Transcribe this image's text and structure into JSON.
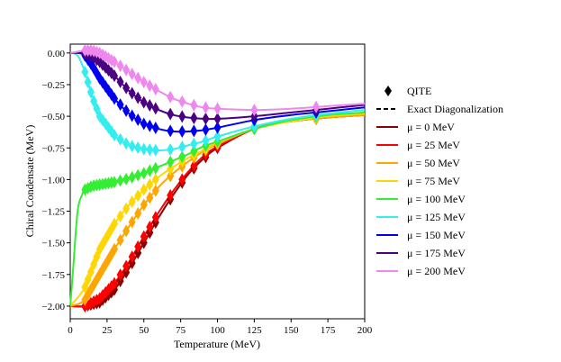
{
  "chart_data": {
    "type": "line",
    "title": "",
    "xlabel": "Temperature (MeV)",
    "ylabel": "Chiral Condensate (MeV)",
    "xlim": [
      0,
      200
    ],
    "ylim": [
      -2.1,
      0.07
    ],
    "xticks": [
      0,
      25,
      50,
      75,
      100,
      125,
      150,
      175,
      200
    ],
    "yticks": [
      0.0,
      -0.25,
      -0.5,
      -0.75,
      -1.0,
      -1.25,
      -1.5,
      -1.75,
      -2.0
    ],
    "xtick_labels": [
      "0",
      "25",
      "50",
      "75",
      "100",
      "125",
      "150",
      "175",
      "200"
    ],
    "ytick_labels": [
      "0.00",
      "−0.25",
      "−0.50",
      "−0.75",
      "−1.00",
      "−1.25",
      "−1.50",
      "−1.75",
      "−2.00"
    ],
    "grid": false,
    "legend_position": "right-outside",
    "legend": {
      "qite_label": "QITE",
      "exact_label": "Exact Diagonalization"
    },
    "series": [
      {
        "name": "μ = 0 MeV",
        "color": "#8b0000",
        "x": [
          0,
          10,
          20,
          30,
          40,
          50,
          60,
          70,
          80,
          90,
          100,
          125,
          150,
          175,
          200
        ],
        "y": [
          -2.0,
          -2.0,
          -1.97,
          -1.87,
          -1.7,
          -1.5,
          -1.3,
          -1.12,
          -0.96,
          -0.84,
          -0.75,
          -0.6,
          -0.54,
          -0.51,
          -0.49
        ]
      },
      {
        "name": "μ = 25 MeV",
        "color": "#ff0000",
        "x": [
          0,
          10,
          20,
          30,
          40,
          50,
          60,
          70,
          80,
          90,
          100,
          125,
          150,
          175,
          200
        ],
        "y": [
          -2.0,
          -2.0,
          -1.94,
          -1.82,
          -1.65,
          -1.45,
          -1.26,
          -1.09,
          -0.94,
          -0.82,
          -0.74,
          -0.6,
          -0.54,
          -0.51,
          -0.49
        ]
      },
      {
        "name": "μ = 50 MeV",
        "color": "#ffa500",
        "x": [
          0,
          10,
          20,
          30,
          40,
          50,
          60,
          70,
          80,
          90,
          100,
          125,
          150,
          175,
          200
        ],
        "y": [
          -2.0,
          -1.95,
          -1.75,
          -1.55,
          -1.37,
          -1.2,
          -1.06,
          -0.95,
          -0.86,
          -0.78,
          -0.72,
          -0.6,
          -0.54,
          -0.51,
          -0.49
        ]
      },
      {
        "name": "μ = 75 MeV",
        "color": "#ffd700",
        "x": [
          0,
          10,
          20,
          30,
          40,
          50,
          60,
          70,
          80,
          90,
          100,
          125,
          150,
          175,
          200
        ],
        "y": [
          -2.0,
          -1.85,
          -1.55,
          -1.35,
          -1.2,
          -1.08,
          -0.98,
          -0.9,
          -0.83,
          -0.77,
          -0.71,
          -0.6,
          -0.54,
          -0.5,
          -0.48
        ]
      },
      {
        "name": "μ = 100 MeV",
        "color": "#33ee33",
        "x": [
          0,
          2,
          5,
          8,
          10,
          15,
          20,
          30,
          40,
          50,
          60,
          70,
          80,
          90,
          100,
          125,
          150,
          175,
          200
        ],
        "y": [
          -2.0,
          -1.7,
          -1.25,
          -1.12,
          -1.08,
          -1.05,
          -1.04,
          -1.02,
          -0.99,
          -0.95,
          -0.9,
          -0.85,
          -0.8,
          -0.74,
          -0.7,
          -0.6,
          -0.53,
          -0.49,
          -0.47
        ]
      },
      {
        "name": "μ = 125 MeV",
        "color": "#33eeee",
        "x": [
          0,
          5,
          10,
          15,
          20,
          30,
          40,
          50,
          60,
          70,
          80,
          90,
          100,
          125,
          150,
          175,
          200
        ],
        "y": [
          0.0,
          -0.02,
          -0.15,
          -0.35,
          -0.5,
          -0.65,
          -0.73,
          -0.76,
          -0.77,
          -0.76,
          -0.73,
          -0.7,
          -0.66,
          -0.58,
          -0.52,
          -0.48,
          -0.45
        ]
      },
      {
        "name": "μ = 150 MeV",
        "color": "#0000ee",
        "x": [
          0,
          5,
          10,
          15,
          20,
          30,
          40,
          50,
          60,
          70,
          80,
          90,
          100,
          125,
          150,
          175,
          200
        ],
        "y": [
          0.0,
          0.0,
          -0.02,
          -0.1,
          -0.2,
          -0.36,
          -0.48,
          -0.56,
          -0.6,
          -0.62,
          -0.62,
          -0.61,
          -0.59,
          -0.53,
          -0.49,
          -0.46,
          -0.43
        ]
      },
      {
        "name": "μ = 175 MeV",
        "color": "#4b0082",
        "x": [
          0,
          5,
          10,
          15,
          20,
          30,
          40,
          50,
          60,
          70,
          80,
          90,
          100,
          125,
          150,
          175,
          200
        ],
        "y": [
          0.0,
          0.0,
          0.0,
          -0.03,
          -0.07,
          -0.18,
          -0.3,
          -0.39,
          -0.45,
          -0.49,
          -0.51,
          -0.52,
          -0.52,
          -0.5,
          -0.47,
          -0.44,
          -0.41
        ]
      },
      {
        "name": "μ = 200 MeV",
        "color": "#ee88ee",
        "x": [
          0,
          5,
          10,
          15,
          20,
          30,
          40,
          50,
          60,
          70,
          80,
          90,
          100,
          125,
          150,
          175,
          200
        ],
        "y": [
          0.0,
          0.01,
          0.02,
          0.02,
          0.0,
          -0.07,
          -0.15,
          -0.23,
          -0.3,
          -0.36,
          -0.4,
          -0.43,
          -0.44,
          -0.45,
          -0.44,
          -0.42,
          -0.4
        ]
      }
    ]
  }
}
